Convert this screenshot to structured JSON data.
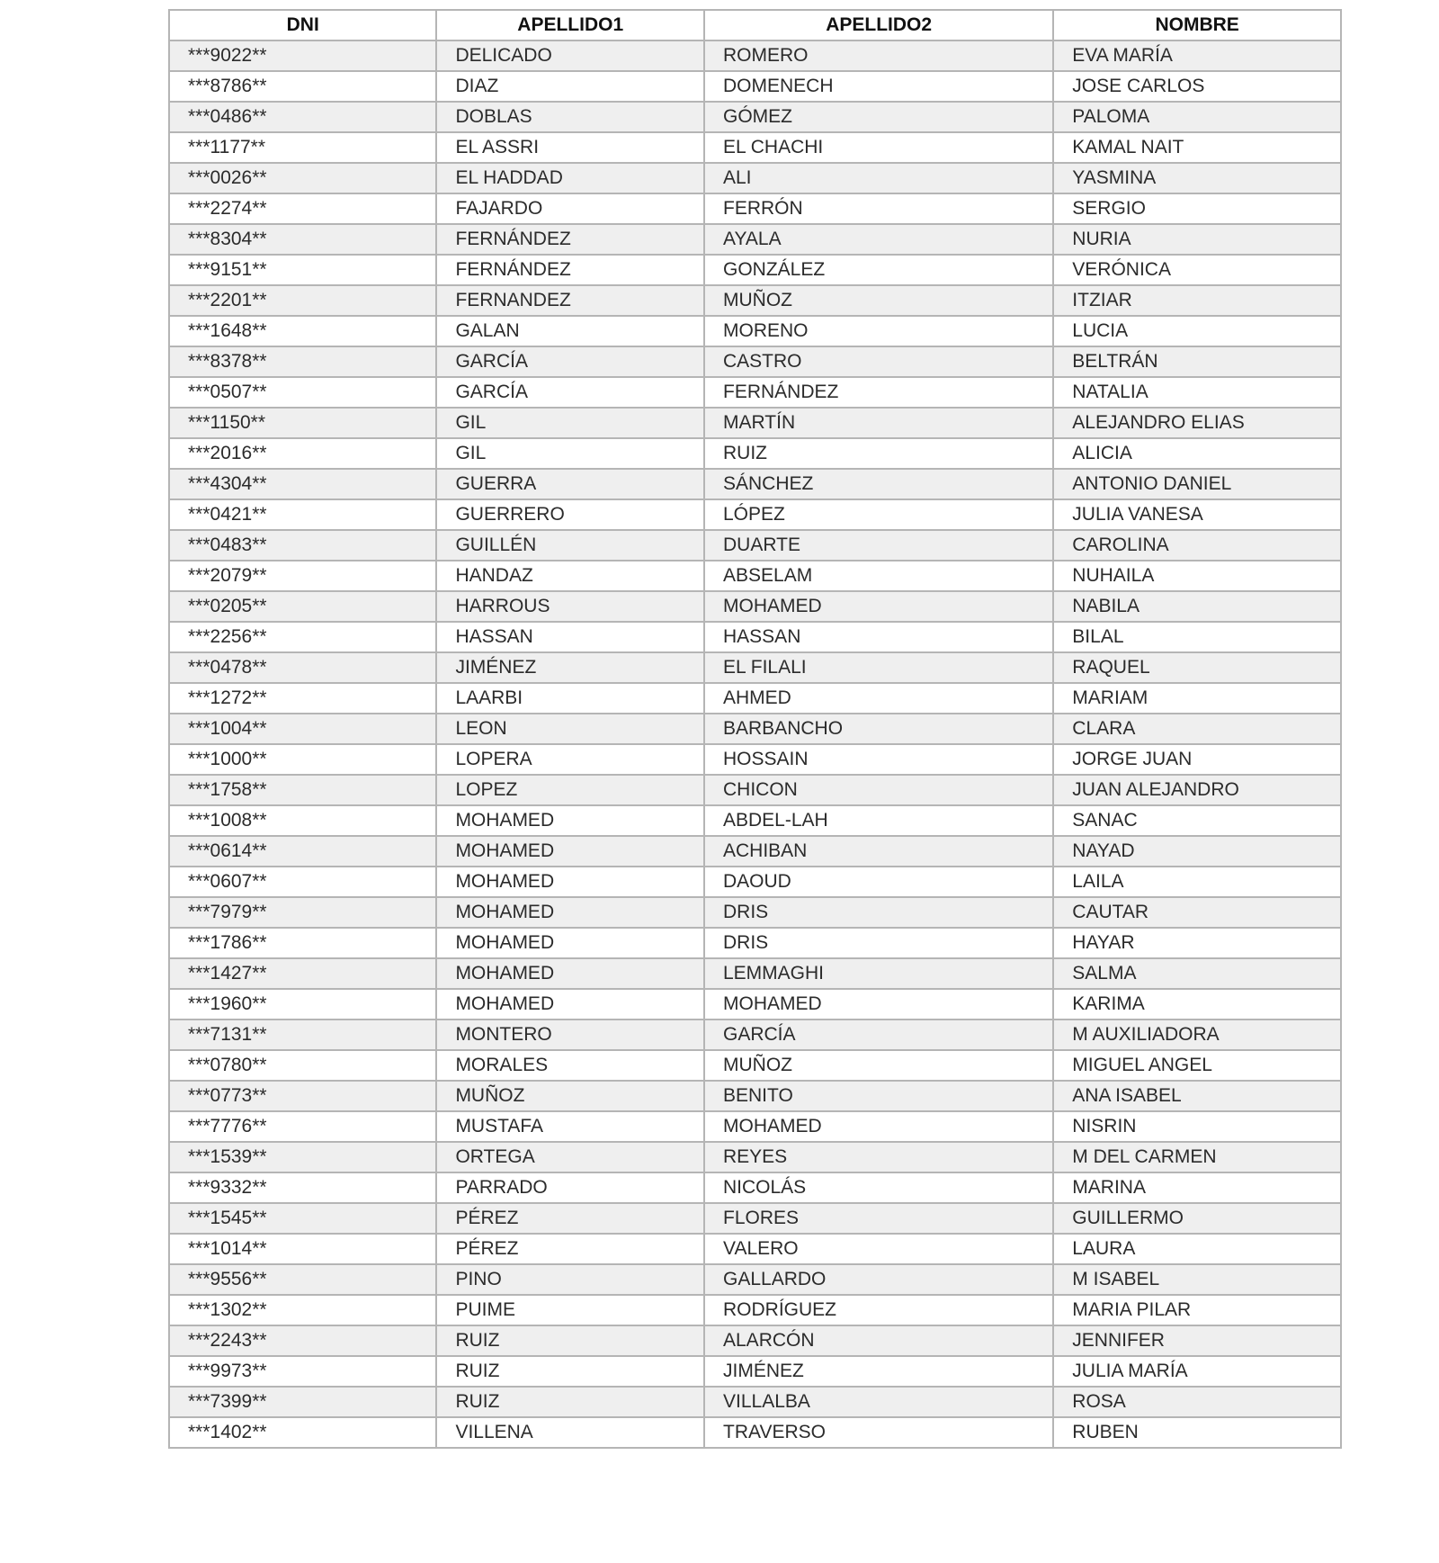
{
  "table": {
    "headers": [
      "DNI",
      "APELLIDO1",
      "APELLIDO2",
      "NOMBRE"
    ],
    "rows": [
      [
        "***9022**",
        "DELICADO",
        "ROMERO",
        "EVA MARÍA"
      ],
      [
        "***8786**",
        "DIAZ",
        "DOMENECH",
        "JOSE CARLOS"
      ],
      [
        "***0486**",
        "DOBLAS",
        "GÓMEZ",
        "PALOMA"
      ],
      [
        "***1177**",
        "EL ASSRI",
        "EL CHACHI",
        "KAMAL NAIT"
      ],
      [
        "***0026**",
        "EL HADDAD",
        "ALI",
        "YASMINA"
      ],
      [
        "***2274**",
        "FAJARDO",
        "FERRÓN",
        "SERGIO"
      ],
      [
        "***8304**",
        "FERNÁNDEZ",
        "AYALA",
        "NURIA"
      ],
      [
        "***9151**",
        "FERNÁNDEZ",
        "GONZÁLEZ",
        "VERÓNICA"
      ],
      [
        "***2201**",
        "FERNANDEZ",
        "MUÑOZ",
        "ITZIAR"
      ],
      [
        "***1648**",
        "GALAN",
        "MORENO",
        "LUCIA"
      ],
      [
        "***8378**",
        "GARCÍA",
        "CASTRO",
        "BELTRÁN"
      ],
      [
        "***0507**",
        "GARCÍA",
        "FERNÁNDEZ",
        "NATALIA"
      ],
      [
        "***1150**",
        "GIL",
        "MARTÍN",
        "ALEJANDRO ELIAS"
      ],
      [
        "***2016**",
        "GIL",
        "RUIZ",
        "ALICIA"
      ],
      [
        "***4304**",
        "GUERRA",
        "SÁNCHEZ",
        "ANTONIO DANIEL"
      ],
      [
        "***0421**",
        "GUERRERO",
        "LÓPEZ",
        "JULIA VANESA"
      ],
      [
        "***0483**",
        "GUILLÉN",
        "DUARTE",
        "CAROLINA"
      ],
      [
        "***2079**",
        "HANDAZ",
        "ABSELAM",
        "NUHAILA"
      ],
      [
        "***0205**",
        "HARROUS",
        "MOHAMED",
        "NABILA"
      ],
      [
        "***2256**",
        "HASSAN",
        "HASSAN",
        "BILAL"
      ],
      [
        "***0478**",
        "JIMÉNEZ",
        "EL FILALI",
        "RAQUEL"
      ],
      [
        "***1272**",
        "LAARBI",
        "AHMED",
        "MARIAM"
      ],
      [
        "***1004**",
        "LEON",
        "BARBANCHO",
        "CLARA"
      ],
      [
        "***1000**",
        "LOPERA",
        "HOSSAIN",
        "JORGE JUAN"
      ],
      [
        "***1758**",
        "LOPEZ",
        "CHICON",
        "JUAN ALEJANDRO"
      ],
      [
        "***1008**",
        "MOHAMED",
        "ABDEL-LAH",
        "SANAC"
      ],
      [
        "***0614**",
        "MOHAMED",
        "ACHIBAN",
        "NAYAD"
      ],
      [
        "***0607**",
        "MOHAMED",
        "DAOUD",
        "LAILA"
      ],
      [
        "***7979**",
        "MOHAMED",
        "DRIS",
        "CAUTAR"
      ],
      [
        "***1786**",
        "MOHAMED",
        "DRIS",
        "HAYAR"
      ],
      [
        "***1427**",
        "MOHAMED",
        "LEMMAGHI",
        "SALMA"
      ],
      [
        "***1960**",
        "MOHAMED",
        "MOHAMED",
        "KARIMA"
      ],
      [
        "***7131**",
        "MONTERO",
        "GARCÍA",
        "M AUXILIADORA"
      ],
      [
        "***0780**",
        "MORALES",
        "MUÑOZ",
        "MIGUEL ANGEL"
      ],
      [
        "***0773**",
        "MUÑOZ",
        "BENITO",
        "ANA ISABEL"
      ],
      [
        "***7776**",
        "MUSTAFA",
        "MOHAMED",
        "NISRIN"
      ],
      [
        "***1539**",
        "ORTEGA",
        "REYES",
        "M DEL CARMEN"
      ],
      [
        "***9332**",
        "PARRADO",
        "NICOLÁS",
        "MARINA"
      ],
      [
        "***1545**",
        "PÉREZ",
        "FLORES",
        "GUILLERMO"
      ],
      [
        "***1014**",
        "PÉREZ",
        "VALERO",
        "LAURA"
      ],
      [
        "***9556**",
        "PINO",
        "GALLARDO",
        "M ISABEL"
      ],
      [
        "***1302**",
        "PUIME",
        "RODRÍGUEZ",
        "MARIA PILAR"
      ],
      [
        "***2243**",
        "RUIZ",
        "ALARCÓN",
        "JENNIFER"
      ],
      [
        "***9973**",
        "RUIZ",
        "JIMÉNEZ",
        "JULIA MARÍA"
      ],
      [
        "***7399**",
        "RUIZ",
        "VILLALBA",
        "ROSA"
      ],
      [
        "***1402**",
        "VILLENA",
        "TRAVERSO",
        "RUBEN"
      ]
    ]
  }
}
